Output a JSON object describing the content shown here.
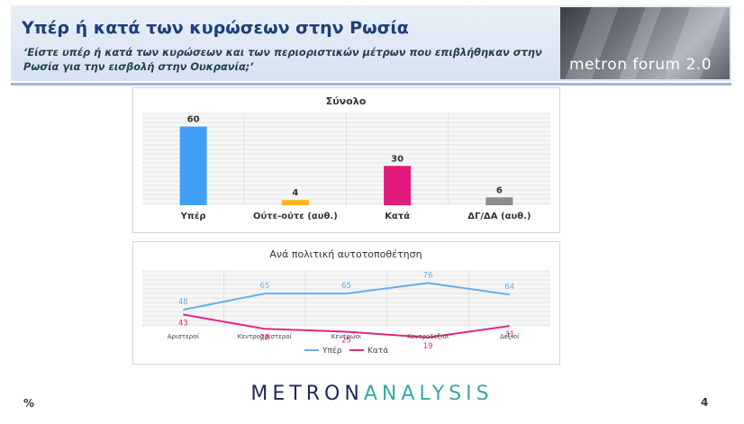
{
  "header": {
    "title": "Υπέρ ή κατά των κυρώσεων στην Ρωσία",
    "subtitle": "‘Είστε υπέρ ή κατά των κυρώσεων και των περιοριστικών μέτρων που επιβλήθηκαν στην Ρωσία για την εισβολή στην Ουκρανία;’",
    "logo_text": "metron forum 2.0"
  },
  "chart_data": [
    {
      "type": "bar",
      "title": "Σύνολο",
      "categories": [
        "Υπέρ",
        "Ούτε-ούτε (αυθ.)",
        "Κατά",
        "ΔΓ/ΔΑ (αυθ.)"
      ],
      "values": [
        60,
        4,
        30,
        6
      ],
      "colors": [
        "#3fa0f4",
        "#f6b51f",
        "#e31b7c",
        "#8c8c8c"
      ],
      "ylim": [
        0,
        70
      ],
      "grid": true
    },
    {
      "type": "line",
      "title": "Ανά πολιτική αυτοτοποθέτηση",
      "categories": [
        "Αριστεροί",
        "Κεντροαριστεροί",
        "Κεντρώοι",
        "Κεντροδεξιοί",
        "Δεξιοί"
      ],
      "series": [
        {
          "name": "Υπέρ",
          "values": [
            48,
            65,
            65,
            76,
            64
          ],
          "color": "#6aaee8"
        },
        {
          "name": "Κατά",
          "values": [
            43,
            28,
            25,
            19,
            31
          ],
          "color": "#e0287f"
        }
      ],
      "ylim": [
        0,
        100
      ],
      "legend": "bottom",
      "grid": true
    }
  ],
  "footer": {
    "left_mark": "%",
    "brand_a": "METRON",
    "brand_b": "ANALYSIS",
    "page": "4"
  }
}
